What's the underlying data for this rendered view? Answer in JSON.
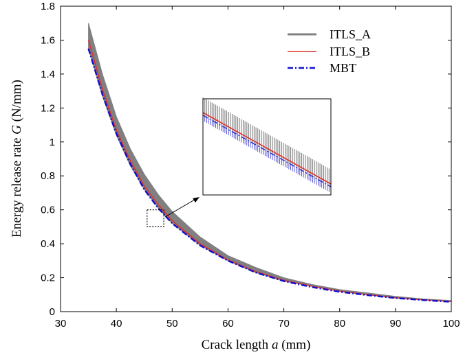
{
  "chart_data": {
    "type": "line",
    "xlabel": {
      "prefix": "Crack length ",
      "var": "a",
      "suffix": " (mm)"
    },
    "ylabel": {
      "prefix": "Energy release rate ",
      "var": "G",
      "suffix": " (N/mm)"
    },
    "xlim": [
      30,
      100
    ],
    "ylim": [
      0,
      1.8
    ],
    "xticks": [
      30,
      40,
      50,
      60,
      70,
      80,
      90,
      100
    ],
    "yticks": [
      0,
      0.2,
      0.4,
      0.6,
      0.8,
      1,
      1.2,
      1.4,
      1.6,
      1.8
    ],
    "grid": false,
    "legend_position": "top-right",
    "x": [
      35,
      37.5,
      40,
      42.5,
      45,
      47.5,
      50,
      55,
      60,
      65,
      70,
      75,
      80,
      85,
      90,
      95,
      100
    ],
    "series": [
      {
        "name": "ITLS_A",
        "color": "#808080",
        "style": "solid",
        "values_low": [
          1.55,
          1.27,
          1.04,
          0.86,
          0.72,
          0.61,
          0.52,
          0.39,
          0.3,
          0.23,
          0.18,
          0.15,
          0.12,
          0.1,
          0.08,
          0.07,
          0.06
        ],
        "values_high": [
          1.7,
          1.4,
          1.15,
          0.96,
          0.81,
          0.69,
          0.59,
          0.44,
          0.33,
          0.26,
          0.2,
          0.16,
          0.13,
          0.11,
          0.09,
          0.075,
          0.065
        ]
      },
      {
        "name": "ITLS_B",
        "color": "#e03030",
        "style": "solid",
        "values": [
          1.6,
          1.31,
          1.07,
          0.89,
          0.74,
          0.63,
          0.535,
          0.4,
          0.305,
          0.235,
          0.185,
          0.15,
          0.12,
          0.1,
          0.082,
          0.07,
          0.06
        ]
      },
      {
        "name": "MBT",
        "color": "#1010cc",
        "style": "dashdot",
        "values": [
          1.55,
          1.28,
          1.05,
          0.87,
          0.72,
          0.61,
          0.52,
          0.39,
          0.3,
          0.23,
          0.18,
          0.145,
          0.117,
          0.097,
          0.08,
          0.068,
          0.058
        ]
      }
    ],
    "inset": {
      "zoom_region": {
        "x": [
          45.5,
          48.5
        ],
        "y": [
          0.5,
          0.6
        ]
      }
    }
  },
  "legend": {
    "items": [
      "ITLS_A",
      "ITLS_B",
      "MBT"
    ]
  }
}
